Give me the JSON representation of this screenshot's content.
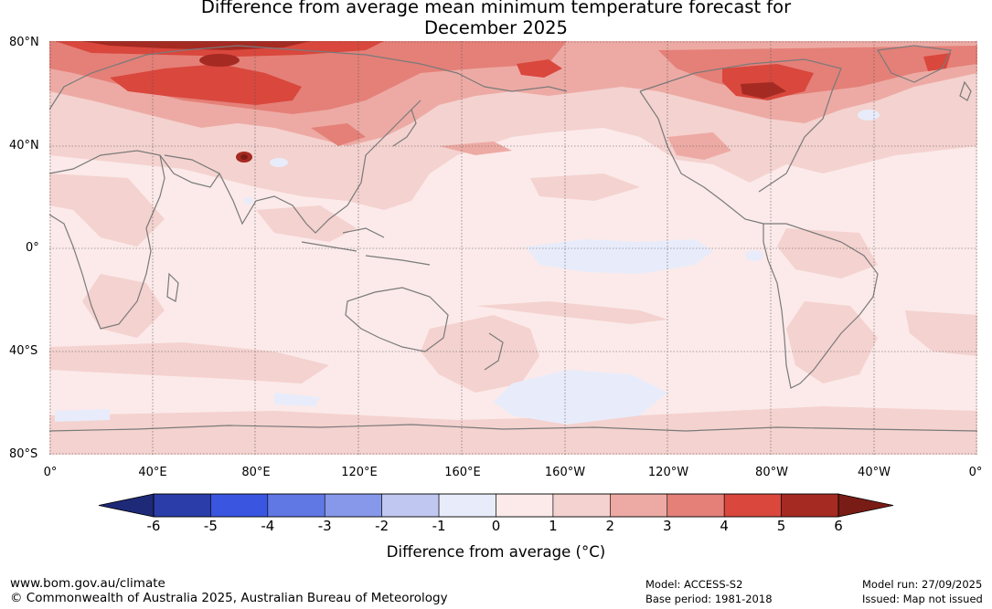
{
  "title": {
    "line1": "Difference from average mean minimum temperature forecast for",
    "line2": "December 2025"
  },
  "map": {
    "ocean_color": "#fbeae9",
    "land_color": "#fbeae9",
    "coast_color": "#7a7a7a",
    "grid_color": "#555555",
    "lat_labels": [
      "80°N",
      "40°N",
      "0°",
      "40°S",
      "80°S"
    ],
    "lon_labels": [
      "0°",
      "40°E",
      "80°E",
      "120°E",
      "160°E",
      "160°W",
      "120°W",
      "80°W",
      "40°W",
      "0°"
    ],
    "anomaly_region_icons": [
      "warm-anomaly-patch-icon",
      "cool-anomaly-patch-icon"
    ]
  },
  "colorbar": {
    "ticks": [
      "-6",
      "-5",
      "-4",
      "-3",
      "-2",
      "-1",
      "0",
      "1",
      "2",
      "3",
      "4",
      "5",
      "6"
    ],
    "colors": [
      "#2a3da8",
      "#3a55e0",
      "#6078e4",
      "#8797e9",
      "#c0c8f1",
      "#e8ecfa",
      "#fbeae9",
      "#f4d2cf",
      "#edaaa4",
      "#e48078",
      "#d9473d",
      "#a52a22"
    ],
    "low_extend_color": "#1e2a78",
    "high_extend_color": "#7a1c16",
    "label": "Difference from average (°C)"
  },
  "footer": {
    "website": "www.bom.gov.au/climate",
    "copyright": "© Commonwealth of Australia 2025, Australian Bureau of Meteorology",
    "model": "Model: ACCESS-S2",
    "base_period": "Base period: 1981-2018",
    "model_run": "Model run: 27/09/2025",
    "issued": "Issued: Map not issued"
  }
}
